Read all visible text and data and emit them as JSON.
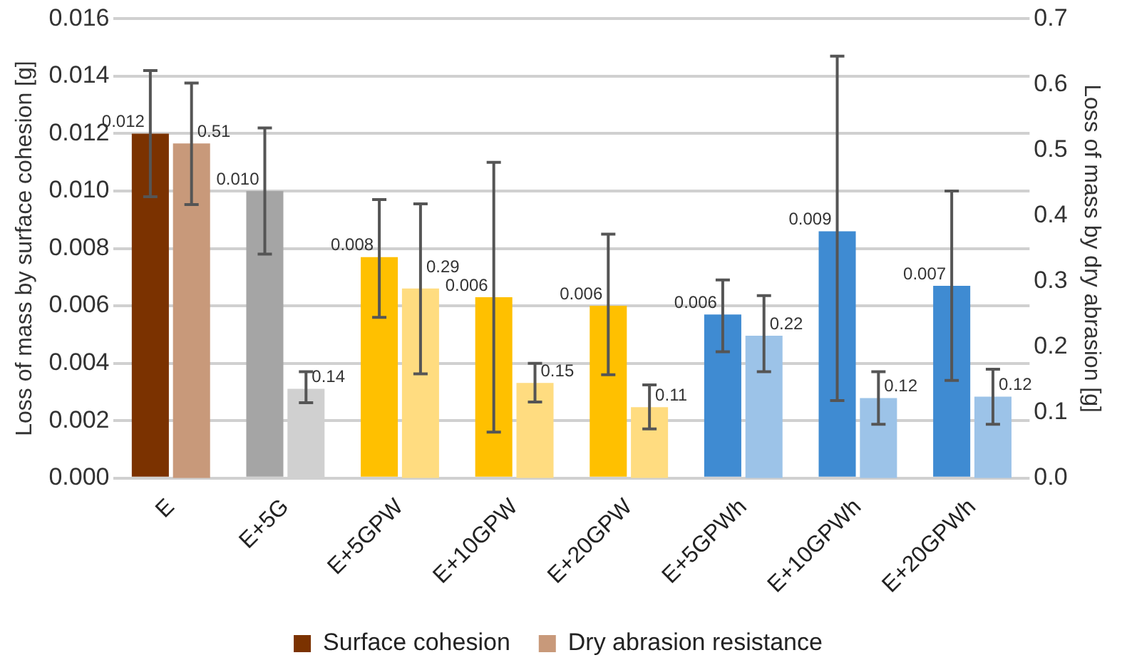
{
  "chart_data": {
    "type": "bar",
    "categories": [
      "E",
      "E+5G",
      "E+5GPW",
      "E+10GPW",
      "E+20GPW",
      "E+5GPWh",
      "E+10GPWh",
      "E+20GPWh"
    ],
    "ylabel": "Loss of mass by surface cohesion [g]",
    "y2label": "Loss of mass by dry abrasion [g]",
    "ylim": [
      0,
      0.016
    ],
    "yticks": [
      {
        "value": 0,
        "label": "0.000"
      },
      {
        "value": 0.002,
        "label": "0.002"
      },
      {
        "value": 0.004,
        "label": "0.004"
      },
      {
        "value": 0.006,
        "label": "0.006"
      },
      {
        "value": 0.008,
        "label": "0.008"
      },
      {
        "value": 0.01,
        "label": "0.010"
      },
      {
        "value": 0.012,
        "label": "0.012"
      },
      {
        "value": 0.014,
        "label": "0.014"
      },
      {
        "value": 0.016,
        "label": "0.016"
      }
    ],
    "y2lim": [
      0,
      0.7
    ],
    "y2ticks": [
      {
        "value": 0,
        "label": "0.0"
      },
      0.1,
      0.2,
      0.3,
      0.4,
      0.5,
      0.6,
      0.7
    ],
    "grid": "y",
    "legend": "bottom",
    "series": [
      {
        "name": "Surface cohesion",
        "color": "#7b3200",
        "colors": [
          "#7b3200",
          "#a5a5a5",
          "#ffc000",
          "#ffc000",
          "#ffc000",
          "#3f8bd2",
          "#3f8bd2",
          "#3f8bd2"
        ],
        "values": [
          0.012,
          0.01,
          0.0077,
          0.0063,
          0.006,
          0.0057,
          0.0086,
          0.0067
        ],
        "errors": [
          [
            0.0098,
            0.0142
          ],
          [
            0.0078,
            0.0122
          ],
          [
            0.0056,
            0.0097
          ],
          [
            0.0016,
            0.011
          ],
          [
            0.0036,
            0.0085
          ],
          [
            0.0044,
            0.0069
          ],
          [
            0.0027,
            0.0147
          ],
          [
            0.0034,
            0.01
          ]
        ],
        "value_labels": [
          "0.012",
          "0.010",
          "0.008",
          "0.006",
          "0.006",
          "0.006",
          "0.009",
          "0.007"
        ]
      },
      {
        "name": "Dry abrasion resistance",
        "axis": "y2",
        "color": "#c8997a",
        "colors": [
          "#c8997a",
          "#d0d0d0",
          "#ffdc80",
          "#ffdc80",
          "#ffdc80",
          "#9cc3e8",
          "#9cc3e8",
          "#9cc3e8"
        ],
        "values": [
          0.51,
          0.136,
          0.289,
          0.145,
          0.108,
          0.217,
          0.122,
          0.124
        ],
        "errors": [
          [
            0.417,
            0.602
          ],
          [
            0.115,
            0.162
          ],
          [
            0.159,
            0.418
          ],
          [
            0.116,
            0.175
          ],
          [
            0.075,
            0.142
          ],
          [
            0.162,
            0.278
          ],
          [
            0.082,
            0.162
          ],
          [
            0.082,
            0.166
          ]
        ],
        "value_labels": [
          "0.51",
          "0.14",
          "0.29",
          "0.15",
          "0.11",
          "0.22",
          "0.12",
          "0.12"
        ]
      }
    ]
  }
}
